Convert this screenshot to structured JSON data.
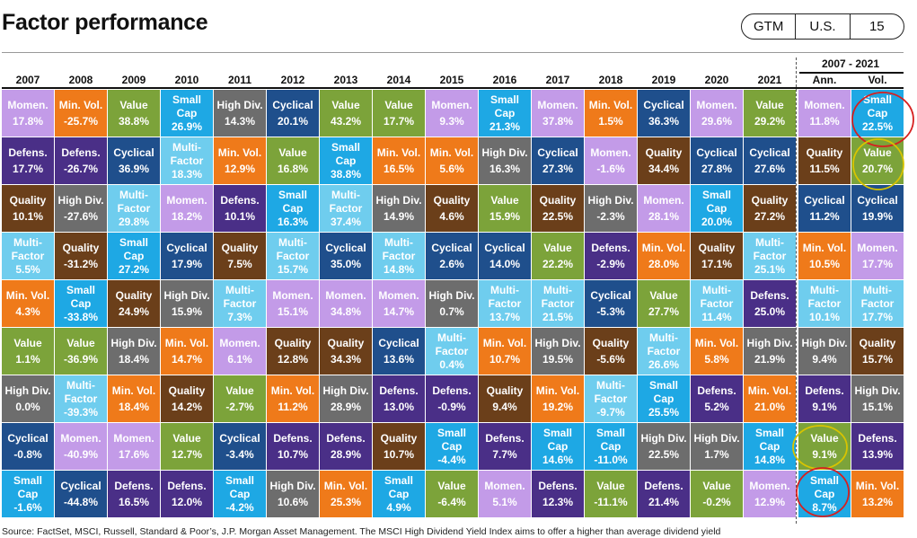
{
  "title": "Factor performance",
  "tags": [
    "GTM",
    "U.S.",
    "15"
  ],
  "range_label": "2007 - 2021",
  "footer": "Source: FactSet, MSCI, Russell, Standard & Poor’s, J.P. Morgan Asset Management. The MSCI High Dividend Yield Index aims to offer a higher than average dividend yield",
  "colors": {
    "Momen.": "#c39be8",
    "Min. Vol.": "#ef7a1a",
    "Value": "#7ca33a",
    "Small Cap": "#1ea8e4",
    "High Div.": "#6d6d6d",
    "Cyclical": "#1f4f8c",
    "Defens.": "#4a2f87",
    "Quality": "#6b3f1a",
    "Multi-Factor": "#6fcdee"
  },
  "annotation_colors": {
    "red": "#d62020",
    "yellow": "#d8c400"
  },
  "chart_data": {
    "type": "table",
    "title": "Factor performance",
    "columns": [
      "2007",
      "2008",
      "2009",
      "2010",
      "2011",
      "2012",
      "2013",
      "2014",
      "2015",
      "2016",
      "2017",
      "2018",
      "2019",
      "2020",
      "2021",
      "Ann.",
      "Vol."
    ],
    "table": [
      [
        [
          "Momen.",
          "17.8%"
        ],
        [
          "Defens.",
          "17.7%"
        ],
        [
          "Quality",
          "10.1%"
        ],
        [
          "Multi-Factor",
          "5.5%"
        ],
        [
          "Min. Vol.",
          "4.3%"
        ],
        [
          "Value",
          "1.1%"
        ],
        [
          "High Div.",
          "0.0%"
        ],
        [
          "Cyclical",
          "-0.8%"
        ],
        [
          "Small Cap",
          "-1.6%"
        ]
      ],
      [
        [
          "Min. Vol.",
          "-25.7%"
        ],
        [
          "Defens.",
          "-26.7%"
        ],
        [
          "High Div.",
          "-27.6%"
        ],
        [
          "Quality",
          "-31.2%"
        ],
        [
          "Small Cap",
          "-33.8%"
        ],
        [
          "Value",
          "-36.9%"
        ],
        [
          "Multi-Factor",
          "-39.3%"
        ],
        [
          "Momen.",
          "-40.9%"
        ],
        [
          "Cyclical",
          "-44.8%"
        ]
      ],
      [
        [
          "Value",
          "38.8%"
        ],
        [
          "Cyclical",
          "36.9%"
        ],
        [
          "Multi-Factor",
          "29.8%"
        ],
        [
          "Small Cap",
          "27.2%"
        ],
        [
          "Quality",
          "24.9%"
        ],
        [
          "High Div.",
          "18.4%"
        ],
        [
          "Min. Vol.",
          "18.4%"
        ],
        [
          "Momen.",
          "17.6%"
        ],
        [
          "Defens.",
          "16.5%"
        ]
      ],
      [
        [
          "Small Cap",
          "26.9%"
        ],
        [
          "Multi-Factor",
          "18.3%"
        ],
        [
          "Momen.",
          "18.2%"
        ],
        [
          "Cyclical",
          "17.9%"
        ],
        [
          "High Div.",
          "15.9%"
        ],
        [
          "Min. Vol.",
          "14.7%"
        ],
        [
          "Quality",
          "14.2%"
        ],
        [
          "Value",
          "12.7%"
        ],
        [
          "Defens.",
          "12.0%"
        ]
      ],
      [
        [
          "High Div.",
          "14.3%"
        ],
        [
          "Min. Vol.",
          "12.9%"
        ],
        [
          "Defens.",
          "10.1%"
        ],
        [
          "Quality",
          "7.5%"
        ],
        [
          "Multi-Factor",
          "7.3%"
        ],
        [
          "Momen.",
          "6.1%"
        ],
        [
          "Value",
          "-2.7%"
        ],
        [
          "Cyclical",
          "-3.4%"
        ],
        [
          "Small Cap",
          "-4.2%"
        ]
      ],
      [
        [
          "Cyclical",
          "20.1%"
        ],
        [
          "Value",
          "16.8%"
        ],
        [
          "Small Cap",
          "16.3%"
        ],
        [
          "Multi-Factor",
          "15.7%"
        ],
        [
          "Momen.",
          "15.1%"
        ],
        [
          "Quality",
          "12.8%"
        ],
        [
          "Min. Vol.",
          "11.2%"
        ],
        [
          "Defens.",
          "10.7%"
        ],
        [
          "High Div.",
          "10.6%"
        ]
      ],
      [
        [
          "Value",
          "43.2%"
        ],
        [
          "Small Cap",
          "38.8%"
        ],
        [
          "Multi-Factor",
          "37.4%"
        ],
        [
          "Cyclical",
          "35.0%"
        ],
        [
          "Momen.",
          "34.8%"
        ],
        [
          "Quality",
          "34.3%"
        ],
        [
          "High Div.",
          "28.9%"
        ],
        [
          "Defens.",
          "28.9%"
        ],
        [
          "Min. Vol.",
          "25.3%"
        ]
      ],
      [
        [
          "Value",
          "17.7%"
        ],
        [
          "Min. Vol.",
          "16.5%"
        ],
        [
          "High Div.",
          "14.9%"
        ],
        [
          "Multi-Factor",
          "14.8%"
        ],
        [
          "Momen.",
          "14.7%"
        ],
        [
          "Cyclical",
          "13.6%"
        ],
        [
          "Defens.",
          "13.0%"
        ],
        [
          "Quality",
          "10.7%"
        ],
        [
          "Small Cap",
          "4.9%"
        ]
      ],
      [
        [
          "Momen.",
          "9.3%"
        ],
        [
          "Min. Vol.",
          "5.6%"
        ],
        [
          "Quality",
          "4.6%"
        ],
        [
          "Cyclical",
          "2.6%"
        ],
        [
          "High Div.",
          "0.7%"
        ],
        [
          "Multi-Factor",
          "0.4%"
        ],
        [
          "Defens.",
          "-0.9%"
        ],
        [
          "Small Cap",
          "-4.4%"
        ],
        [
          "Value",
          "-6.4%"
        ]
      ],
      [
        [
          "Small Cap",
          "21.3%"
        ],
        [
          "High Div.",
          "16.3%"
        ],
        [
          "Value",
          "15.9%"
        ],
        [
          "Cyclical",
          "14.0%"
        ],
        [
          "Multi-Factor",
          "13.7%"
        ],
        [
          "Min. Vol.",
          "10.7%"
        ],
        [
          "Quality",
          "9.4%"
        ],
        [
          "Defens.",
          "7.7%"
        ],
        [
          "Momen.",
          "5.1%"
        ]
      ],
      [
        [
          "Momen.",
          "37.8%"
        ],
        [
          "Cyclical",
          "27.3%"
        ],
        [
          "Quality",
          "22.5%"
        ],
        [
          "Value",
          "22.2%"
        ],
        [
          "Multi-Factor",
          "21.5%"
        ],
        [
          "High Div.",
          "19.5%"
        ],
        [
          "Min. Vol.",
          "19.2%"
        ],
        [
          "Small Cap",
          "14.6%"
        ],
        [
          "Defens.",
          "12.3%"
        ]
      ],
      [
        [
          "Min. Vol.",
          "1.5%"
        ],
        [
          "Momen.",
          "-1.6%"
        ],
        [
          "High Div.",
          "-2.3%"
        ],
        [
          "Defens.",
          "-2.9%"
        ],
        [
          "Cyclical",
          "-5.3%"
        ],
        [
          "Quality",
          "-5.6%"
        ],
        [
          "Multi-Factor",
          "-9.7%"
        ],
        [
          "Small Cap",
          "-11.0%"
        ],
        [
          "Value",
          "-11.1%"
        ]
      ],
      [
        [
          "Cyclical",
          "36.3%"
        ],
        [
          "Quality",
          "34.4%"
        ],
        [
          "Momen.",
          "28.1%"
        ],
        [
          "Min. Vol.",
          "28.0%"
        ],
        [
          "Value",
          "27.7%"
        ],
        [
          "Multi-Factor",
          "26.6%"
        ],
        [
          "Small Cap",
          "25.5%"
        ],
        [
          "High Div.",
          "22.5%"
        ],
        [
          "Defens.",
          "21.4%"
        ]
      ],
      [
        [
          "Momen.",
          "29.6%"
        ],
        [
          "Cyclical",
          "27.8%"
        ],
        [
          "Small Cap",
          "20.0%"
        ],
        [
          "Quality",
          "17.1%"
        ],
        [
          "Multi-Factor",
          "11.4%"
        ],
        [
          "Min. Vol.",
          "5.8%"
        ],
        [
          "Defens.",
          "5.2%"
        ],
        [
          "High Div.",
          "1.7%"
        ],
        [
          "Value",
          "-0.2%"
        ]
      ],
      [
        [
          "Value",
          "29.2%"
        ],
        [
          "Cyclical",
          "27.6%"
        ],
        [
          "Quality",
          "27.2%"
        ],
        [
          "Multi-Factor",
          "25.1%"
        ],
        [
          "Defens.",
          "25.0%"
        ],
        [
          "High Div.",
          "21.9%"
        ],
        [
          "Min. Vol.",
          "21.0%"
        ],
        [
          "Small Cap",
          "14.8%"
        ],
        [
          "Momen.",
          "12.9%"
        ]
      ],
      [
        [
          "Momen.",
          "11.8%"
        ],
        [
          "Quality",
          "11.5%"
        ],
        [
          "Cyclical",
          "11.2%"
        ],
        [
          "Min. Vol.",
          "10.5%"
        ],
        [
          "Multi-Factor",
          "10.1%"
        ],
        [
          "High Div.",
          "9.4%"
        ],
        [
          "Defens.",
          "9.1%"
        ],
        [
          "Value",
          "9.1%"
        ],
        [
          "Small Cap",
          "8.7%"
        ]
      ],
      [
        [
          "Small Cap",
          "22.5%"
        ],
        [
          "Value",
          "20.7%"
        ],
        [
          "Cyclical",
          "19.9%"
        ],
        [
          "Momen.",
          "17.7%"
        ],
        [
          "Multi-Factor",
          "17.7%"
        ],
        [
          "Quality",
          "15.7%"
        ],
        [
          "High Div.",
          "15.1%"
        ],
        [
          "Defens.",
          "13.9%"
        ],
        [
          "Min. Vol.",
          "13.2%"
        ]
      ]
    ]
  }
}
